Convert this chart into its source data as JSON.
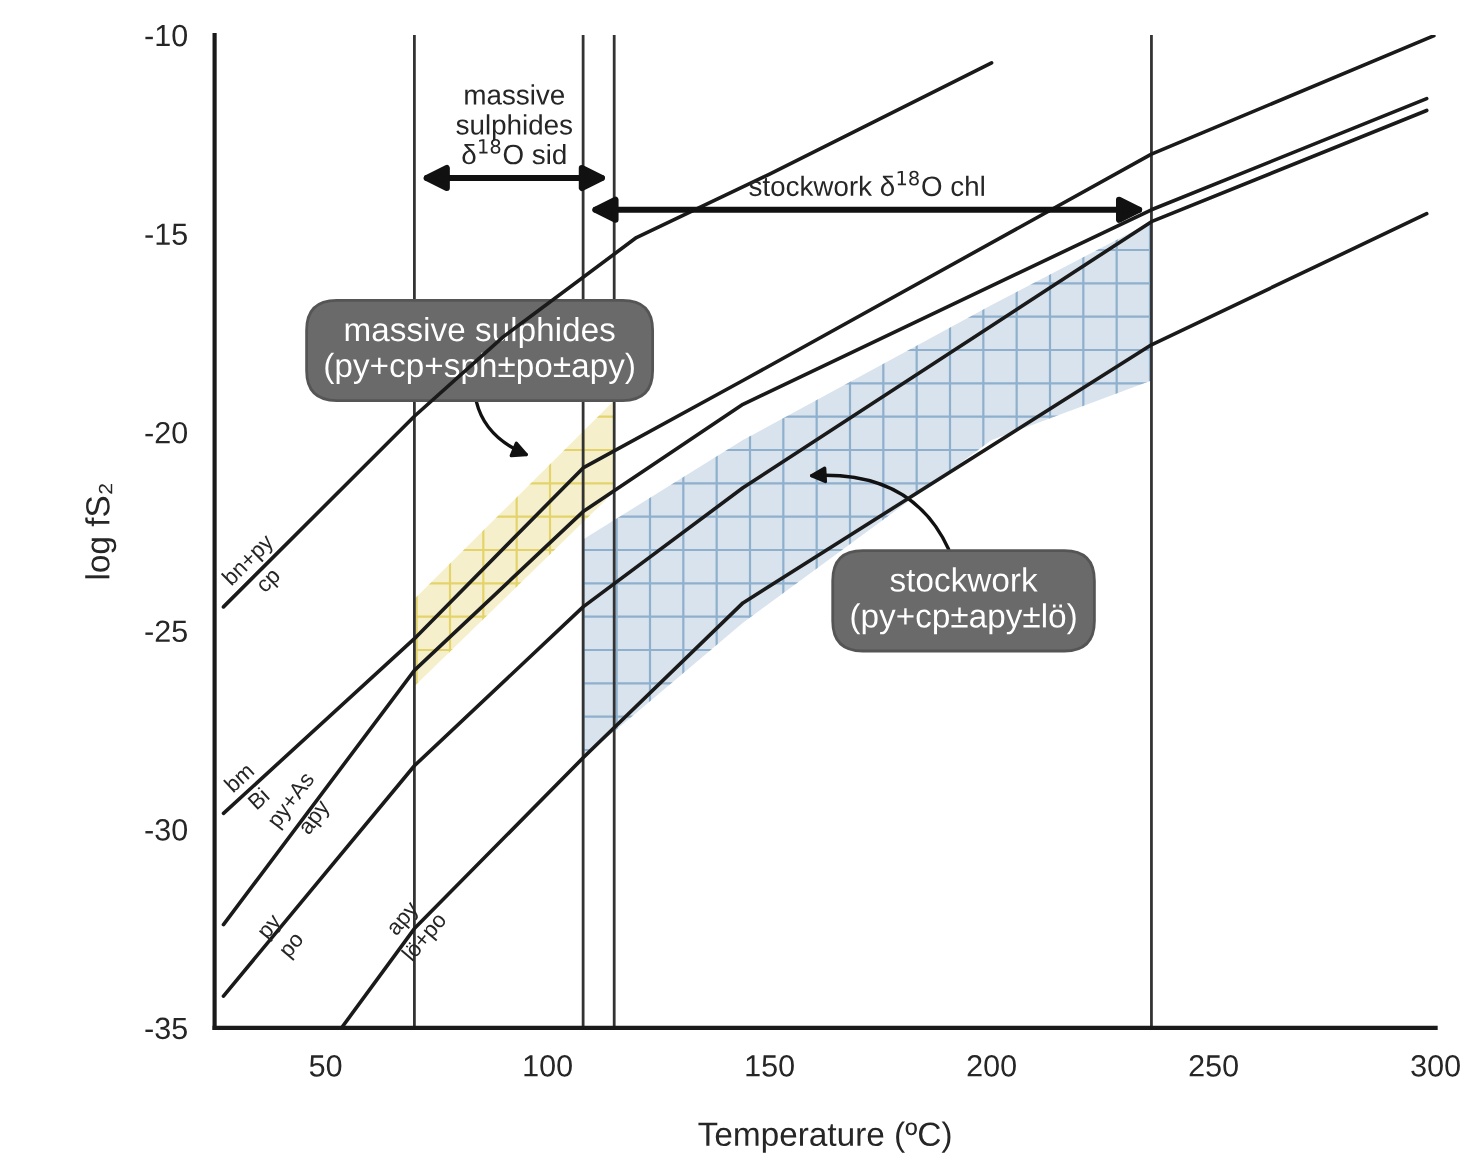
{
  "chart_data": {
    "type": "line",
    "xlabel": "Temperature (ºC)",
    "ylabel": "log fS₂",
    "xlim": [
      25,
      300
    ],
    "ylim": [
      -35,
      -10
    ],
    "xticks": [
      50,
      100,
      150,
      200,
      250,
      300
    ],
    "yticks": [
      -35,
      -30,
      -25,
      -20,
      -15,
      -10
    ],
    "grid": false,
    "legend": false,
    "marker": "none",
    "line_style": "solid",
    "series": [
      {
        "type": "area",
        "color": "#e3d36a",
        "x": [
          70,
          115
        ],
        "values": [
          null,
          null
        ],
        "lower": [
          -26.4,
          -21.5
        ],
        "upper": [
          -24.2,
          -19.2
        ]
      },
      {
        "type": "area",
        "color": "#8fb0cc",
        "x": [
          108,
          144,
          200,
          236
        ],
        "values": [
          null,
          null,
          null,
          null
        ],
        "lower": [
          -28.2,
          -24.8,
          -20.2,
          -18.7
        ],
        "upper": [
          -22.7,
          -20.2,
          -16.8,
          -14.7
        ]
      },
      {
        "color": "#1a1a1a",
        "x": [
          27,
          70,
          90,
          120,
          150,
          200
        ],
        "values": [
          -24.4,
          -19.6,
          -17.6,
          -15.1,
          -13.5,
          -10.7
        ]
      },
      {
        "color": "#1a1a1a",
        "x": [
          27,
          70,
          108,
          144,
          236,
          300
        ],
        "values": [
          -29.6,
          -25.2,
          -20.9,
          -18.7,
          -13.0,
          -10
        ]
      },
      {
        "color": "#1a1a1a",
        "x": [
          27,
          70,
          108,
          144,
          236,
          298
        ],
        "values": [
          -32.4,
          -26.0,
          -22.0,
          -19.3,
          -14.4,
          -11.6
        ]
      },
      {
        "color": "#1a1a1a",
        "x": [
          27,
          70,
          108,
          144,
          236,
          298
        ],
        "values": [
          -34.2,
          -28.4,
          -24.4,
          -21.4,
          -14.7,
          -11.9
        ]
      },
      {
        "color": "#1a1a1a",
        "x": [
          53.6,
          70,
          108,
          144,
          236,
          298
        ],
        "values": [
          -35,
          -32.5,
          -28.2,
          -24.3,
          -17.8,
          -14.5
        ]
      }
    ],
    "ref_lines": [
      {
        "axis": "x",
        "value": 70,
        "color": "#333333"
      },
      {
        "axis": "x",
        "value": 108,
        "color": "#333333"
      },
      {
        "axis": "x",
        "value": 115,
        "color": "#333333"
      },
      {
        "axis": "x",
        "value": 236,
        "color": "#333333"
      }
    ],
    "annotations": [
      {
        "text": "bn+py\ncp",
        "x": 35,
        "y": -23.5
      },
      {
        "text": "bm\nBi",
        "x": 33,
        "y": -29.0
      },
      {
        "text": "py+As\napy",
        "x": 45,
        "y": -29.5
      },
      {
        "text": "py\npo",
        "x": 40,
        "y": -32.7
      },
      {
        "text": "apy\nlö+po",
        "x": 70,
        "y": -32.5
      },
      "massive\nsulphides\nδ$^{18}$O sid",
      "stockwork δ$^{18}$O chl",
      "massive sulphides\n(py+cp+sph±po±apy)",
      "stockwork\n(py+cp±apy±lö)"
    ]
  }
}
